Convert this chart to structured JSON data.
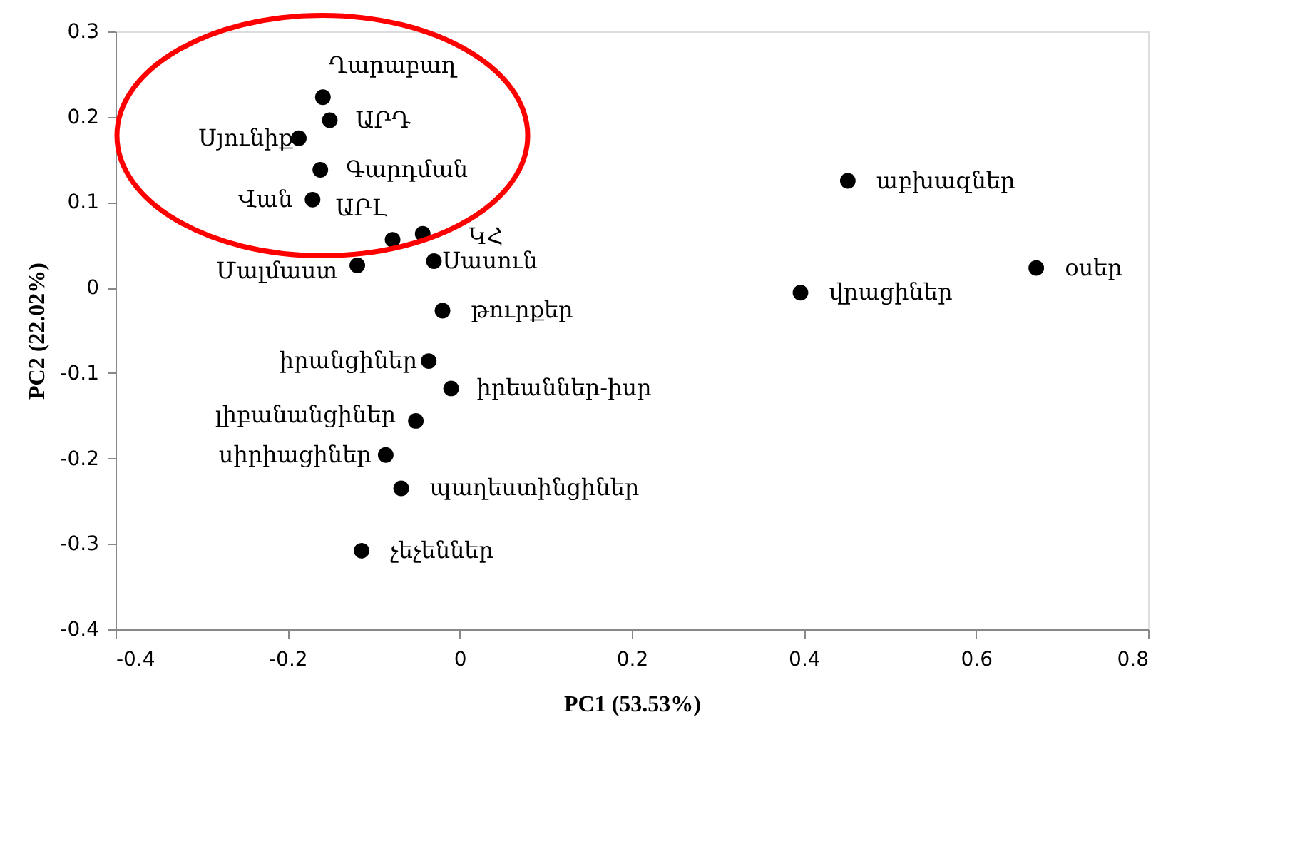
{
  "chart_data": {
    "type": "scatter",
    "xlabel": "PC1 (53.53%)",
    "ylabel": "PC2 (22.02%)",
    "x": [
      -0.159,
      -0.151,
      -0.187,
      -0.162,
      -0.171,
      -0.078,
      -0.043,
      -0.119,
      -0.03,
      -0.02,
      -0.036,
      -0.01,
      -0.051,
      -0.086,
      -0.068,
      -0.114,
      0.451,
      0.396,
      0.67
    ],
    "values": [
      0.223,
      0.196,
      0.175,
      0.138,
      0.103,
      0.056,
      0.063,
      0.026,
      0.031,
      -0.027,
      -0.086,
      -0.118,
      -0.156,
      -0.196,
      -0.235,
      -0.308,
      0.125,
      -0.006,
      0.023
    ],
    "color": "#000000",
    "marker": "circle",
    "xlim": [
      -0.4,
      0.8
    ],
    "xticks": [
      -0.4,
      -0.2,
      0,
      0.2,
      0.4,
      0.6,
      0.8
    ],
    "ylim": [
      -0.4,
      0.3
    ],
    "yticks": [
      -0.4,
      -0.3,
      -0.2,
      -0.1,
      0,
      0.1,
      0.2,
      0.3
    ],
    "grid": false,
    "annotations": [
      {
        "text": "Ղարաբաղ",
        "x": -0.159,
        "y": 0.223
      },
      {
        "text": "ԱՐԴ",
        "x": -0.151,
        "y": 0.196
      },
      {
        "text": "Սյունիք",
        "x": -0.187,
        "y": 0.175
      },
      {
        "text": "Գարդման",
        "x": -0.162,
        "y": 0.138
      },
      {
        "text": "Վան",
        "x": -0.171,
        "y": 0.103
      },
      {
        "text": "ԱՐԼ",
        "x": -0.078,
        "y": 0.056
      },
      {
        "text": "ԿՀ",
        "x": -0.043,
        "y": 0.063
      },
      {
        "text": "Մալմաստ",
        "x": -0.119,
        "y": 0.026
      },
      {
        "text": "Սասուն",
        "x": -0.03,
        "y": 0.031
      },
      {
        "text": "թուրքեր",
        "x": -0.02,
        "y": -0.027
      },
      {
        "text": "իրանցիներ",
        "x": -0.036,
        "y": -0.086
      },
      {
        "text": "իրեաններ-իսր",
        "x": -0.01,
        "y": -0.118
      },
      {
        "text": "լիբանանցիներ",
        "x": -0.051,
        "y": -0.156
      },
      {
        "text": "սիրիացիներ",
        "x": -0.086,
        "y": -0.196
      },
      {
        "text": "պաղեստինցիներ",
        "x": -0.068,
        "y": -0.235
      },
      {
        "text": "չեչեններ",
        "x": -0.114,
        "y": -0.308
      },
      {
        "text": "աբխազներ",
        "x": 0.451,
        "y": 0.125
      },
      {
        "text": "վրացիներ",
        "x": 0.396,
        "y": -0.006
      },
      {
        "text": "օսեր",
        "x": 0.67,
        "y": 0.023
      }
    ]
  }
}
